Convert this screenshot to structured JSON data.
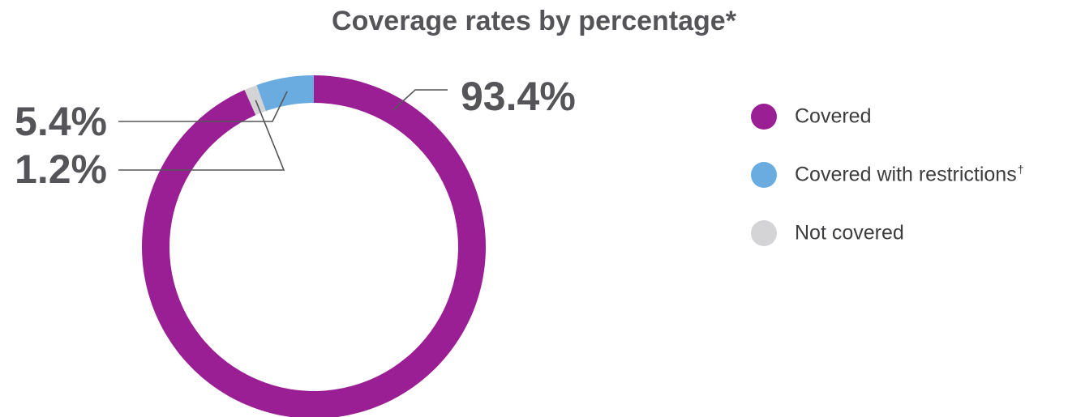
{
  "chart_data": {
    "type": "pie",
    "title": "Coverage rates by percentage*",
    "donut": true,
    "categories": [
      "Covered",
      "Covered with restrictions",
      "Not covered"
    ],
    "values": [
      93.4,
      5.4,
      1.2
    ],
    "data_labels": [
      "93.4%",
      "5.4%",
      "1.2%"
    ],
    "colors": [
      "#9a1f94",
      "#6aace0",
      "#d4d4d6"
    ],
    "legend": {
      "placement": "right",
      "items": [
        {
          "label": "Covered",
          "suffix": ""
        },
        {
          "label": "Covered with restrictions",
          "suffix": "†"
        },
        {
          "label": "Not covered",
          "suffix": ""
        }
      ]
    }
  }
}
